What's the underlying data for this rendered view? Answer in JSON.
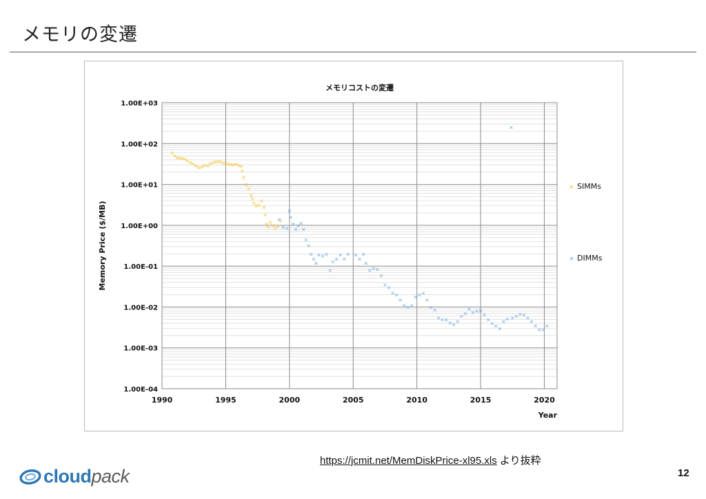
{
  "slide": {
    "title": "メモリの変遷",
    "page_number": "12",
    "source_link": "https://jcmit.net/MemDiskPrice-xl95.xls",
    "source_suffix": " より抜粋",
    "logo_cloud": "cloud",
    "logo_pack": "pack",
    "colors": {
      "logo_blue": "#2f77b5",
      "simms": "#f2c232",
      "dimms": "#6fa8dc"
    }
  },
  "chart_data": {
    "type": "scatter",
    "title": "メモリコストの変遷",
    "xlabel": "Year",
    "ylabel": "Memory Price ($/MB)",
    "xlim": [
      1990,
      2021
    ],
    "x_ticks": [
      1990,
      1995,
      2000,
      2005,
      2010,
      2015,
      2020
    ],
    "ylim": [
      0.0001,
      1000
    ],
    "y_scale": "log",
    "y_tick_labels": [
      "1.00E+03",
      "1.00E+02",
      "1.00E+01",
      "1.00E+00",
      "1.00E-01",
      "1.00E-02",
      "1.00E-03",
      "1.00E-04"
    ],
    "y_tick_values": [
      1000,
      100,
      10,
      1,
      0.1,
      0.01,
      0.001,
      0.0001
    ],
    "grid": true,
    "legend_position": "right",
    "series": [
      {
        "name": "SIMMs",
        "color": "#f2c232",
        "marker": "x",
        "points": [
          [
            1990.8,
            60
          ],
          [
            1991.0,
            50
          ],
          [
            1991.2,
            46
          ],
          [
            1991.4,
            45
          ],
          [
            1991.6,
            44
          ],
          [
            1991.8,
            42
          ],
          [
            1992.0,
            38
          ],
          [
            1992.2,
            35
          ],
          [
            1992.4,
            33
          ],
          [
            1992.6,
            30
          ],
          [
            1992.8,
            27
          ],
          [
            1993.0,
            26
          ],
          [
            1993.2,
            28
          ],
          [
            1993.4,
            30
          ],
          [
            1993.6,
            29
          ],
          [
            1993.8,
            33
          ],
          [
            1994.0,
            35
          ],
          [
            1994.2,
            36
          ],
          [
            1994.4,
            37
          ],
          [
            1994.6,
            36
          ],
          [
            1994.8,
            34
          ],
          [
            1995.0,
            33
          ],
          [
            1995.2,
            32
          ],
          [
            1995.4,
            31
          ],
          [
            1995.6,
            31
          ],
          [
            1995.8,
            32
          ],
          [
            1996.0,
            30
          ],
          [
            1996.2,
            28
          ],
          [
            1996.3,
            22
          ],
          [
            1996.4,
            15
          ],
          [
            1996.6,
            10
          ],
          [
            1996.8,
            8
          ],
          [
            1997.0,
            5.5
          ],
          [
            1997.1,
            4.5
          ],
          [
            1997.2,
            3.5
          ],
          [
            1997.4,
            3.0
          ],
          [
            1997.6,
            3.2
          ],
          [
            1997.8,
            4.0
          ],
          [
            1998.0,
            2.8
          ],
          [
            1998.1,
            1.8
          ],
          [
            1998.2,
            1.1
          ],
          [
            1998.3,
            0.95
          ],
          [
            1998.5,
            1.2
          ],
          [
            1998.7,
            1.0
          ],
          [
            1998.9,
            0.85
          ],
          [
            1999.1,
            0.95
          ],
          [
            1999.3,
            1.3
          ]
        ]
      },
      {
        "name": "DIMMs",
        "color": "#6fa8dc",
        "marker": "x",
        "points": [
          [
            1999.2,
            1.4
          ],
          [
            1999.5,
            0.9
          ],
          [
            1999.8,
            0.85
          ],
          [
            2000.0,
            2.3
          ],
          [
            2000.1,
            1.6
          ],
          [
            2000.3,
            1.1
          ],
          [
            2000.5,
            0.8
          ],
          [
            2000.7,
            1.0
          ],
          [
            2000.9,
            1.15
          ],
          [
            2001.1,
            0.8
          ],
          [
            2001.3,
            0.45
          ],
          [
            2001.5,
            0.32
          ],
          [
            2001.7,
            0.2
          ],
          [
            2001.9,
            0.15
          ],
          [
            2002.1,
            0.12
          ],
          [
            2002.3,
            0.19
          ],
          [
            2002.6,
            0.18
          ],
          [
            2002.9,
            0.2
          ],
          [
            2003.2,
            0.08
          ],
          [
            2003.4,
            0.13
          ],
          [
            2003.7,
            0.15
          ],
          [
            2004.0,
            0.19
          ],
          [
            2004.3,
            0.15
          ],
          [
            2004.6,
            0.2
          ],
          [
            2005.2,
            0.19
          ],
          [
            2005.5,
            0.15
          ],
          [
            2005.8,
            0.2
          ],
          [
            2006.0,
            0.12
          ],
          [
            2006.3,
            0.08
          ],
          [
            2006.6,
            0.09
          ],
          [
            2006.9,
            0.085
          ],
          [
            2007.2,
            0.06
          ],
          [
            2007.5,
            0.035
          ],
          [
            2007.8,
            0.03
          ],
          [
            2008.1,
            0.022
          ],
          [
            2008.4,
            0.02
          ],
          [
            2008.7,
            0.015
          ],
          [
            2009.0,
            0.011
          ],
          [
            2009.3,
            0.01
          ],
          [
            2009.6,
            0.011
          ],
          [
            2009.9,
            0.018
          ],
          [
            2010.2,
            0.02
          ],
          [
            2010.5,
            0.022
          ],
          [
            2010.8,
            0.015
          ],
          [
            2011.1,
            0.01
          ],
          [
            2011.4,
            0.0085
          ],
          [
            2011.7,
            0.0055
          ],
          [
            2012.0,
            0.005
          ],
          [
            2012.3,
            0.005
          ],
          [
            2012.6,
            0.0042
          ],
          [
            2012.9,
            0.0038
          ],
          [
            2013.2,
            0.0045
          ],
          [
            2013.5,
            0.006
          ],
          [
            2013.8,
            0.007
          ],
          [
            2014.1,
            0.009
          ],
          [
            2014.4,
            0.0075
          ],
          [
            2014.7,
            0.008
          ],
          [
            2015.0,
            0.0082
          ],
          [
            2015.3,
            0.0065
          ],
          [
            2015.6,
            0.005
          ],
          [
            2015.9,
            0.004
          ],
          [
            2016.2,
            0.0035
          ],
          [
            2016.5,
            0.003
          ],
          [
            2016.8,
            0.0045
          ],
          [
            2017.1,
            0.0052
          ],
          [
            2017.4,
            250
          ],
          [
            2017.5,
            0.0055
          ],
          [
            2017.8,
            0.006
          ],
          [
            2018.1,
            0.0068
          ],
          [
            2018.4,
            0.0065
          ],
          [
            2018.7,
            0.0055
          ],
          [
            2019.0,
            0.0045
          ],
          [
            2019.3,
            0.0035
          ],
          [
            2019.6,
            0.0028
          ],
          [
            2019.9,
            0.0028
          ],
          [
            2020.2,
            0.0035
          ]
        ]
      }
    ]
  }
}
